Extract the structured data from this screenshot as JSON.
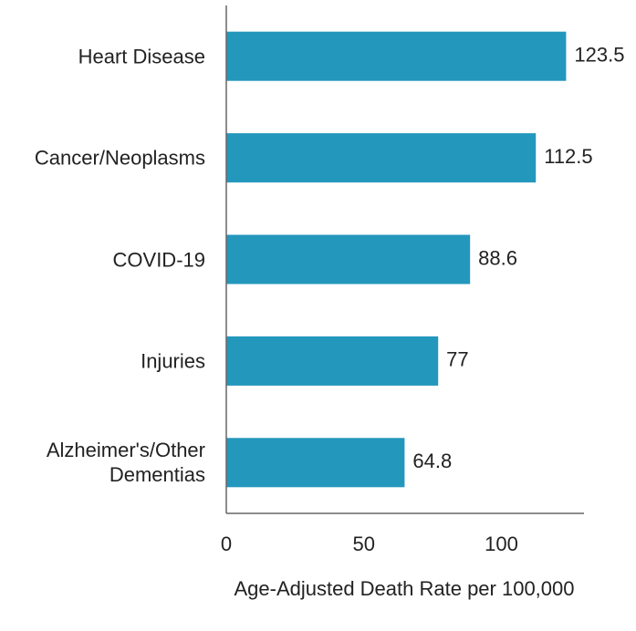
{
  "chart_data": {
    "type": "bar",
    "orientation": "horizontal",
    "x_label": "Age-Adjusted Death Rate per 100,000",
    "categories": [
      "Heart Disease",
      "Cancer/Neoplasms",
      "COVID-19",
      "Injuries",
      "Alzheimer's/Other Dementias"
    ],
    "values": [
      123.5,
      112.5,
      88.6,
      77,
      64.8
    ],
    "color": "#2497bd",
    "xlim": [
      0,
      130
    ],
    "xticks": [
      0,
      50,
      100
    ],
    "grid": false
  }
}
